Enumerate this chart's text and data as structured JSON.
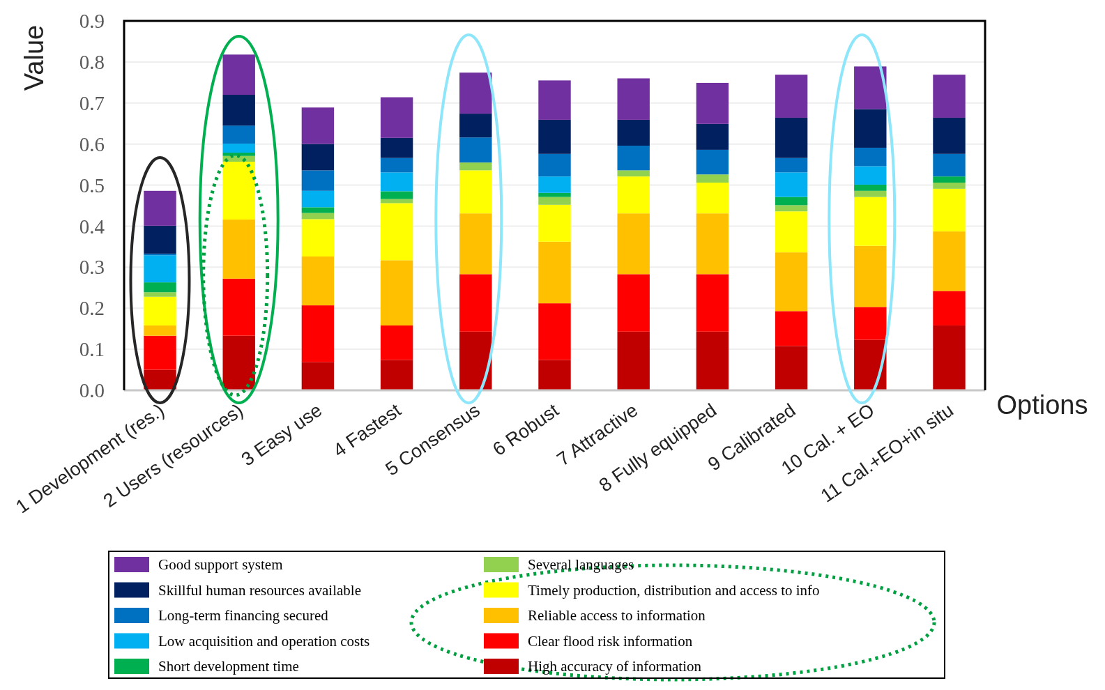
{
  "chart_data": {
    "type": "bar",
    "stacked": true,
    "ylabel": "Value",
    "xlabel": "Options",
    "categories": [
      "1 Development (res.)",
      "2 Users (resources)",
      "3 Easy use",
      "4 Fastest",
      "5 Consensus",
      "6 Robust",
      "7 Attractive",
      "8 Fully equipped",
      "9 Calibrated",
      "10 Cal. + EO",
      "11 Cal.+EO+in situ"
    ],
    "ylim": [
      0,
      0.9
    ],
    "yticks": [
      {
        "value": 0,
        "label": "0.0"
      },
      0.1,
      0.2,
      0.3,
      0.4,
      0.5,
      0.6,
      0.7,
      0.8,
      0.9
    ],
    "grid": "y",
    "legend": "bottom",
    "series": [
      {
        "name": "High accuracy of information",
        "color": "#c00000",
        "values": [
          0.05,
          0.133,
          0.069,
          0.074,
          0.143,
          0.074,
          0.143,
          0.143,
          0.108,
          0.123,
          0.158
        ]
      },
      {
        "name": "Clear flood risk information",
        "color": "#ff0000",
        "values": [
          0.083,
          0.139,
          0.138,
          0.084,
          0.14,
          0.138,
          0.14,
          0.14,
          0.085,
          0.08,
          0.084
        ]
      },
      {
        "name": "Reliable access to information",
        "color": "#ffc000",
        "values": [
          0.025,
          0.144,
          0.119,
          0.159,
          0.148,
          0.15,
          0.148,
          0.148,
          0.143,
          0.149,
          0.145
        ]
      },
      {
        "name": "Timely production, distribution and access to info",
        "color": "#ffff00",
        "values": [
          0.07,
          0.141,
          0.091,
          0.139,
          0.105,
          0.09,
          0.09,
          0.075,
          0.1,
          0.119,
          0.104
        ]
      },
      {
        "name": "Several languages",
        "color": "#92d050",
        "values": [
          0.011,
          0.014,
          0.015,
          0.01,
          0.019,
          0.019,
          0.015,
          0.02,
          0.015,
          0.015,
          0.015
        ]
      },
      {
        "name": "Short development time",
        "color": "#00b050",
        "values": [
          0.024,
          0.008,
          0.014,
          0.019,
          0,
          0.01,
          0,
          0,
          0.02,
          0.015,
          0.015
        ]
      },
      {
        "name": "Low acquisition and operation costs",
        "color": "#00b0f0",
        "values": [
          0.066,
          0.022,
          0.04,
          0.046,
          0,
          0.04,
          0,
          0,
          0.06,
          0.045,
          0
        ]
      },
      {
        "name": "Long-term financing secured",
        "color": "#0070c0",
        "values": [
          0.004,
          0.044,
          0.05,
          0.035,
          0.061,
          0.055,
          0.06,
          0.06,
          0.035,
          0.045,
          0.055
        ]
      },
      {
        "name": "Skillful human resources available",
        "color": "#002060",
        "values": [
          0.068,
          0.075,
          0.064,
          0.049,
          0.058,
          0.083,
          0.063,
          0.063,
          0.098,
          0.094,
          0.088
        ]
      },
      {
        "name": "Good support system",
        "color": "#7030a0",
        "values": [
          0.085,
          0.098,
          0.089,
          0.099,
          0.1,
          0.096,
          0.101,
          0.1,
          0.105,
          0.104,
          0.105
        ]
      }
    ]
  }
}
